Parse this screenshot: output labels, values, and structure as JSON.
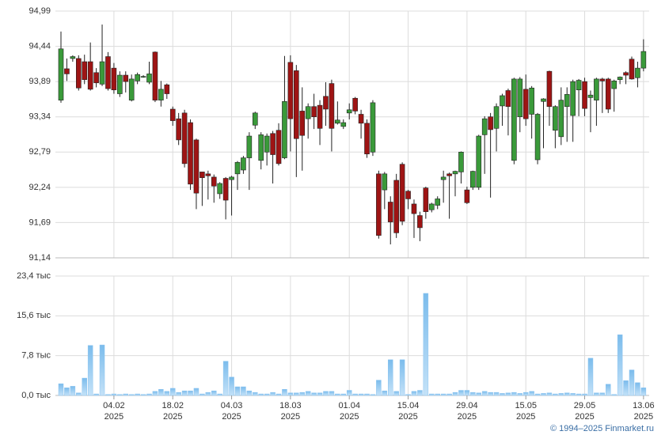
{
  "chart_data": [
    {
      "type": "candlestick",
      "open": [
        93.6,
        94.09,
        94.25,
        94.25,
        94.2,
        94.2,
        94.03,
        93.85,
        94.28,
        94.1,
        93.7,
        93.99,
        93.6,
        93.9,
        93.97,
        93.88,
        94.35,
        93.6,
        93.84,
        93.46,
        93.31,
        93.4,
        93.25,
        92.98,
        92.48,
        92.45,
        92.4,
        92.14,
        92.38,
        92.36,
        92.45,
        92.51,
        92.7,
        93.21,
        92.66,
        92.79,
        93.08,
        93.13,
        92.7,
        94.19,
        94.06,
        93.43,
        93.31,
        93.5,
        93.52,
        93.66,
        93.86,
        93.24,
        93.19,
        93.4,
        93.63,
        93.38,
        93.24,
        92.79,
        92.45,
        92.2,
        92.01,
        92.35,
        92.6,
        92.18,
        91.98,
        91.8,
        92.23,
        91.89,
        91.96,
        92.36,
        92.45,
        92.45,
        92.48,
        92.2,
        92.24,
        92.24,
        93.06,
        93.34,
        93.16,
        93.51,
        93.75,
        92.66,
        93.34,
        93.77,
        93.38,
        92.67,
        93.58,
        94.05,
        93.13,
        93.03,
        93.5,
        93.36,
        93.76,
        93.89,
        93.64,
        93.6,
        93.93,
        93.93,
        93.78,
        93.92,
        94.03,
        94.24,
        93.95,
        94.1
      ],
      "high": [
        94.67,
        94.25,
        94.3,
        94.3,
        94.31,
        94.5,
        94.1,
        94.78,
        94.35,
        94.18,
        94.05,
        94.05,
        94.0,
        94.03,
        93.99,
        94.2,
        94.36,
        93.9,
        93.86,
        93.5,
        93.4,
        93.45,
        93.3,
        93.0,
        92.48,
        92.5,
        92.44,
        92.32,
        92.4,
        92.42,
        92.65,
        92.73,
        93.1,
        93.42,
        93.1,
        93.08,
        93.12,
        93.24,
        94.29,
        94.3,
        94.15,
        93.8,
        93.55,
        93.7,
        93.6,
        93.88,
        93.92,
        93.58,
        93.3,
        93.55,
        93.65,
        93.45,
        93.3,
        93.6,
        92.5,
        92.48,
        92.1,
        92.45,
        92.63,
        92.2,
        92.05,
        91.86,
        92.25,
        92.0,
        92.1,
        92.5,
        92.47,
        92.5,
        92.8,
        92.25,
        92.5,
        93.06,
        93.35,
        93.4,
        93.55,
        93.7,
        93.78,
        93.95,
        93.96,
        94.0,
        93.82,
        93.4,
        93.63,
        94.06,
        93.52,
        93.8,
        93.8,
        93.92,
        93.93,
        93.95,
        93.75,
        93.95,
        93.95,
        93.95,
        93.92,
        93.97,
        94.05,
        94.28,
        94.2,
        94.55
      ],
      "low": [
        93.56,
        93.9,
        94.2,
        93.75,
        93.85,
        93.75,
        93.8,
        93.82,
        93.75,
        93.7,
        93.65,
        93.72,
        93.58,
        93.85,
        93.95,
        93.85,
        93.57,
        93.5,
        93.62,
        93.2,
        92.9,
        92.55,
        92.2,
        91.9,
        91.95,
        92.05,
        92.0,
        92.06,
        91.74,
        91.8,
        92.2,
        92.45,
        92.2,
        93.15,
        92.52,
        92.58,
        92.3,
        92.58,
        92.68,
        92.8,
        92.4,
        92.5,
        93.0,
        93.15,
        92.9,
        93.2,
        92.8,
        93.22,
        93.15,
        93.3,
        93.38,
        93.0,
        92.7,
        92.73,
        91.44,
        91.9,
        91.35,
        91.45,
        91.65,
        91.9,
        91.45,
        91.4,
        91.75,
        91.85,
        91.9,
        92.0,
        91.75,
        92.1,
        92.3,
        91.98,
        92.2,
        92.2,
        92.45,
        92.08,
        92.8,
        93.2,
        93.05,
        92.6,
        93.1,
        93.2,
        93.0,
        92.6,
        92.85,
        93.2,
        92.85,
        92.9,
        92.95,
        92.95,
        93.35,
        93.35,
        93.1,
        93.2,
        93.4,
        93.4,
        93.42,
        93.85,
        93.85,
        93.92,
        93.8,
        94.05
      ],
      "close": [
        94.4,
        94.01,
        94.28,
        93.79,
        93.92,
        93.77,
        93.87,
        94.2,
        93.78,
        93.76,
        93.99,
        93.89,
        93.93,
        94.0,
        93.97,
        94.01,
        93.6,
        93.77,
        93.7,
        93.28,
        92.98,
        92.61,
        92.29,
        92.15,
        92.39,
        92.42,
        92.26,
        92.3,
        92.04,
        92.4,
        92.63,
        92.7,
        93.04,
        93.4,
        93.06,
        93.04,
        92.75,
        92.61,
        93.58,
        93.31,
        93.0,
        93.05,
        93.5,
        93.34,
        93.16,
        93.46,
        93.16,
        93.29,
        93.25,
        93.45,
        93.43,
        93.24,
        92.76,
        93.56,
        91.49,
        92.45,
        91.7,
        91.53,
        91.71,
        92.06,
        91.83,
        91.61,
        91.86,
        91.98,
        92.06,
        92.4,
        92.42,
        92.49,
        92.79,
        92.0,
        92.49,
        93.04,
        93.31,
        93.14,
        93.5,
        93.67,
        93.5,
        93.93,
        93.93,
        93.31,
        93.79,
        93.38,
        93.62,
        93.5,
        93.5,
        93.6,
        93.69,
        93.89,
        93.91,
        93.47,
        93.68,
        93.93,
        93.9,
        93.46,
        93.9,
        93.96,
        93.99,
        93.93,
        94.1,
        94.36
      ],
      "up_color": "#3a9a3a",
      "down_color": "#9e1414",
      "ylim": [
        91.14,
        94.99
      ],
      "yticks": [
        {
          "value": 91.14,
          "label": "91,14"
        },
        {
          "value": 91.69,
          "label": "91,69"
        },
        {
          "value": 92.24,
          "label": "92,24"
        },
        {
          "value": 92.79,
          "label": "92,79"
        },
        {
          "value": 93.34,
          "label": "93,34"
        },
        {
          "value": 93.89,
          "label": "93,89"
        },
        {
          "value": 94.44,
          "label": "94,44"
        },
        {
          "value": 94.99,
          "label": "94,99"
        }
      ],
      "grid": true
    },
    {
      "type": "bar",
      "categories": [
        null,
        null,
        null,
        null,
        null,
        null,
        null,
        null,
        null,
        {
          "date": "04.02",
          "year": "2025"
        },
        null,
        null,
        null,
        null,
        null,
        null,
        null,
        null,
        null,
        {
          "date": "18.02",
          "year": "2025"
        },
        null,
        null,
        null,
        null,
        null,
        null,
        null,
        null,
        null,
        {
          "date": "04.03",
          "year": "2025"
        },
        null,
        null,
        null,
        null,
        null,
        null,
        null,
        null,
        null,
        {
          "date": "18.03",
          "year": "2025"
        },
        null,
        null,
        null,
        null,
        null,
        null,
        null,
        null,
        null,
        {
          "date": "01.04",
          "year": "2025"
        },
        null,
        null,
        null,
        null,
        null,
        null,
        null,
        null,
        null,
        {
          "date": "15.04",
          "year": "2025"
        },
        null,
        null,
        null,
        null,
        null,
        null,
        null,
        null,
        null,
        {
          "date": "29.04",
          "year": "2025"
        },
        null,
        null,
        null,
        null,
        null,
        null,
        null,
        null,
        null,
        {
          "date": "15.05",
          "year": "2025"
        },
        null,
        null,
        null,
        null,
        null,
        null,
        null,
        null,
        null,
        {
          "date": "29.05",
          "year": "2025"
        },
        null,
        null,
        null,
        null,
        null,
        null,
        null,
        null,
        null,
        {
          "date": "13.06",
          "year": "2025"
        }
      ],
      "values": [
        2.3,
        1.5,
        1.8,
        0.5,
        3.4,
        9.8,
        0.3,
        9.9,
        0.2,
        0.3,
        0.2,
        0.3,
        0.2,
        0.3,
        0.2,
        0.3,
        0.8,
        1.2,
        0.8,
        1.4,
        0.6,
        0.9,
        0.9,
        1.4,
        0.3,
        0.6,
        0.9,
        0.3,
        6.7,
        3.6,
        1.7,
        1.7,
        0.9,
        0.6,
        0.3,
        0.3,
        0.6,
        0.3,
        1.2,
        0.5,
        0.5,
        0.6,
        0.8,
        0.5,
        0.5,
        0.8,
        0.8,
        0.3,
        0.3,
        1.0,
        0.3,
        0.3,
        0.3,
        0.2,
        3.0,
        0.9,
        7.0,
        0.8,
        7.0,
        0.2,
        0.8,
        1.0,
        20.0,
        0.3,
        0.3,
        0.3,
        0.3,
        0.6,
        1.0,
        1.0,
        0.6,
        0.5,
        0.8,
        0.6,
        0.6,
        0.4,
        0.5,
        0.6,
        0.4,
        0.6,
        0.8,
        0.3,
        0.4,
        0.5,
        0.3,
        0.4,
        0.5,
        0.4,
        0.3,
        0.3,
        7.3,
        0.5,
        0.5,
        2.2,
        0.2,
        11.9,
        2.9,
        5.0,
        2.5,
        1.5
      ],
      "color": "#8cc4f0",
      "ylim": [
        0,
        23.4
      ],
      "yticks": [
        {
          "value": 0,
          "label": "0,0 тыс"
        },
        {
          "value": 7.8,
          "label": "7,8 тыс"
        },
        {
          "value": 15.6,
          "label": "15,6 тыс"
        },
        {
          "value": 23.4,
          "label": "23,4 тыс"
        }
      ],
      "grid": true
    }
  ],
  "footer": "© 1994–2025 Finmarket.ru"
}
